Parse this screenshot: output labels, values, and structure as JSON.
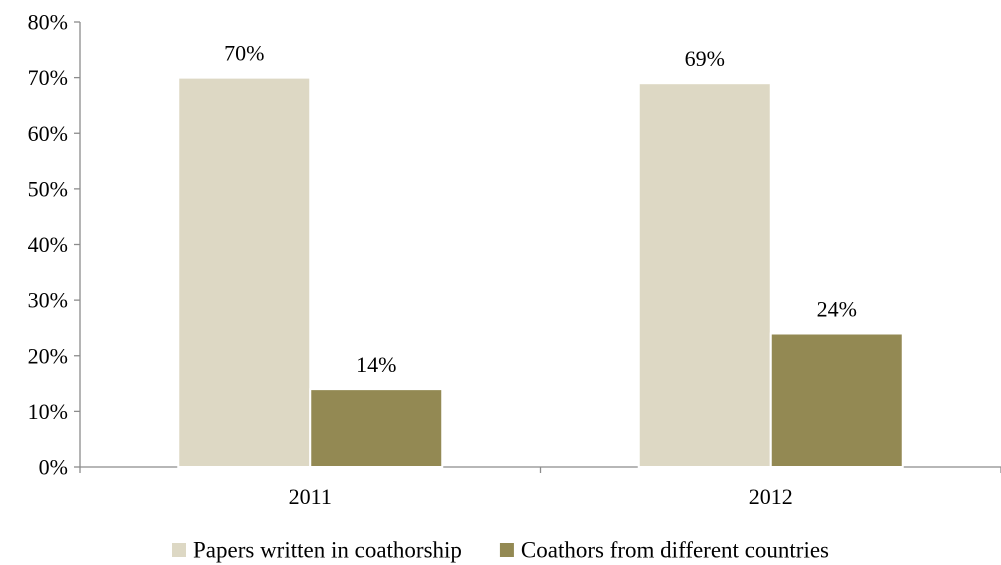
{
  "chart_data": {
    "type": "bar",
    "categories": [
      "2011",
      "2012"
    ],
    "series": [
      {
        "name": "Papers written in coathorship",
        "color": "#ddd8c4",
        "values": [
          70,
          69
        ],
        "labels": [
          "70%",
          "69%"
        ]
      },
      {
        "name": "Coathors from different countries",
        "color": "#938953",
        "values": [
          14,
          24
        ],
        "labels": [
          "14%",
          "24%"
        ]
      }
    ],
    "title": "",
    "xlabel": "",
    "ylabel": "",
    "ylim": [
      0,
      80
    ],
    "yticks": [
      0,
      10,
      20,
      30,
      40,
      50,
      60,
      70,
      80
    ],
    "ytick_labels": [
      "0%",
      "10%",
      "20%",
      "30%",
      "40%",
      "50%",
      "60%",
      "70%",
      "80%"
    ],
    "grid": false,
    "legend_position": "bottom"
  }
}
